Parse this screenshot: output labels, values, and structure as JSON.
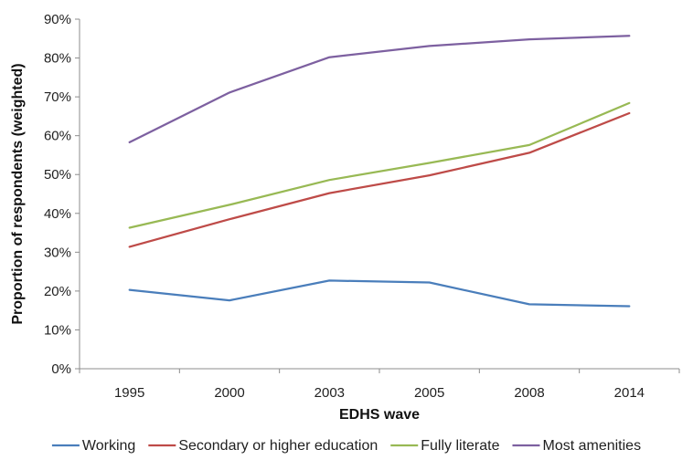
{
  "chart_data": {
    "type": "line",
    "title": "",
    "xlabel": "EDHS wave",
    "ylabel": "Proportion of respondents (weighted)",
    "categories": [
      "1995",
      "2000",
      "2003",
      "2005",
      "2008",
      "2014"
    ],
    "yticks": [
      "0%",
      "10%",
      "20%",
      "30%",
      "40%",
      "50%",
      "60%",
      "70%",
      "80%",
      "90%"
    ],
    "ylim": [
      0,
      90
    ],
    "grid": false,
    "legend_position": "bottom",
    "series": [
      {
        "name": "Working",
        "color": "#4a7ebb",
        "values": [
          20.3,
          17.6,
          22.7,
          22.2,
          16.6,
          16.1
        ]
      },
      {
        "name": "Secondary or higher education",
        "color": "#be4b48",
        "values": [
          31.4,
          38.5,
          45.2,
          49.8,
          55.6,
          65.8
        ]
      },
      {
        "name": "Fully literate",
        "color": "#98b954",
        "values": [
          36.3,
          42.2,
          48.6,
          53.0,
          57.6,
          68.4
        ]
      },
      {
        "name": "Most amenities",
        "color": "#7d60a0",
        "values": [
          58.3,
          71.1,
          80.2,
          83.1,
          84.8,
          85.7
        ]
      }
    ]
  }
}
